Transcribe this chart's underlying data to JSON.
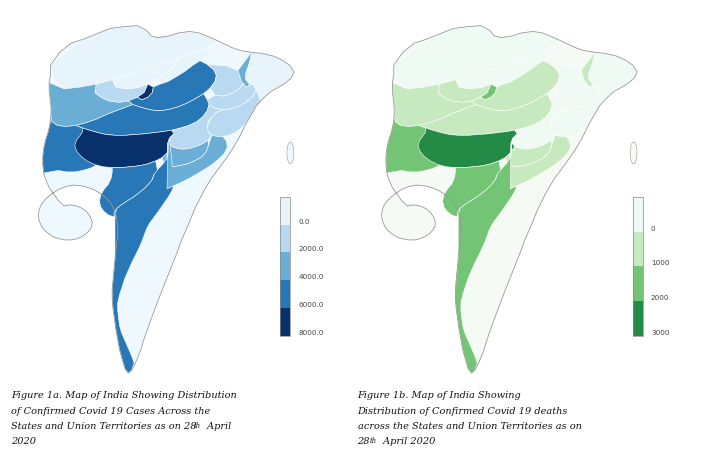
{
  "fig_width": 7.15,
  "fig_height": 4.63,
  "bg_color": "#ffffff",
  "panel_bg": "#ffffff",
  "caption_left": "Figure 1a. Map of India Showing Distribution\nof Confirmed Covid 19 Cases Across the\nStates and Union Territories as on 28th April\n2020",
  "caption_right": "Figure 1b. Map of India Showing\nDistribution of Confirmed Covid 19 deaths\nacross the States and Union Territories as on\n28th April 2020",
  "legend_cases_labels": [
    "0.0",
    "2000.0",
    "4000.0",
    "6000.0",
    "8000.0"
  ],
  "legend_deaths_labels": [
    "0",
    "1000",
    "2000",
    "3000"
  ],
  "cases_cmap_colors": [
    "#e8f4fc",
    "#b8d9ef",
    "#6aaed6",
    "#2878b8",
    "#08306b"
  ],
  "deaths_cmap_colors": [
    "#f0faf4",
    "#c7e9c0",
    "#74c476",
    "#238b45"
  ],
  "font_size_caption": 7.0,
  "font_size_legend": 6.0,
  "superscript_th": "th"
}
